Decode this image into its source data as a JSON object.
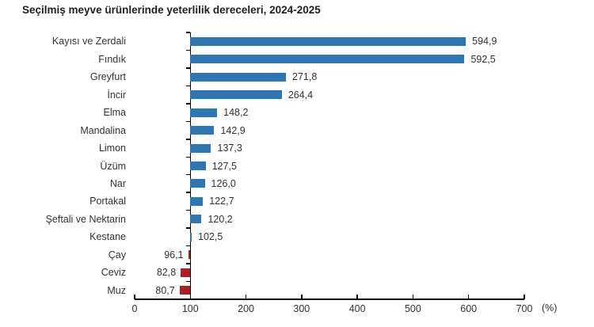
{
  "chart_data": {
    "type": "bar",
    "orientation": "horizontal",
    "title": "Seçilmiş meyve ürünlerinde yeterlilik dereceleri, 2024-2025",
    "categories": [
      "Kayısı ve Zerdali",
      "Fındık",
      "Greyfurt",
      "İncir",
      "Elma",
      "Mandalina",
      "Limon",
      "Üzüm",
      "Nar",
      "Portakal",
      "Şeftali ve Nektarin",
      "Kestane",
      "Çay",
      "Ceviz",
      "Muz"
    ],
    "values": [
      594.9,
      592.5,
      271.8,
      264.4,
      148.2,
      142.9,
      137.3,
      127.5,
      126.0,
      122.7,
      120.2,
      102.5,
      96.1,
      82.8,
      80.7
    ],
    "value_labels": [
      "594,9",
      "592,5",
      "271,8",
      "264,4",
      "148,2",
      "142,9",
      "137,3",
      "127,5",
      "126,0",
      "122,7",
      "120,2",
      "102,5",
      "96,1",
      "82,8",
      "80,7"
    ],
    "baseline": 100,
    "xlim": [
      0,
      700
    ],
    "x_ticks": [
      0,
      100,
      200,
      300,
      400,
      500,
      600,
      700
    ],
    "x_tick_labels": [
      "0",
      "100",
      "200",
      "300",
      "400",
      "500",
      "600",
      "700"
    ],
    "x_unit_label": "(%)",
    "legend": "none",
    "grid": "off",
    "bar_color_above_baseline": "#2d76b4",
    "bar_color_below_baseline": "#ae1e24",
    "axis_color": "#000000",
    "text_color": "#333333"
  }
}
